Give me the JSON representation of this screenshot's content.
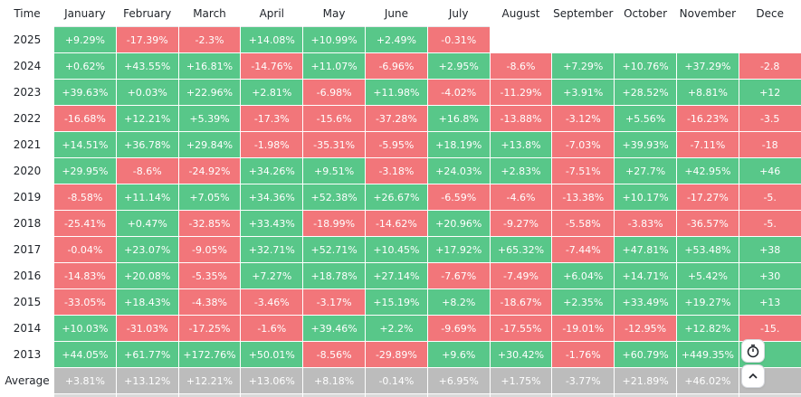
{
  "chart_data": {
    "type": "heatmap",
    "corner_label": "Time",
    "columns": [
      "January",
      "February",
      "March",
      "April",
      "May",
      "June",
      "July",
      "August",
      "September",
      "October",
      "November",
      "Dece"
    ],
    "rows": [
      {
        "label": "2025",
        "values": [
          "+9.29%",
          "-17.39%",
          "-2.3%",
          "+14.08%",
          "+10.99%",
          "+2.49%",
          "-0.31%",
          null,
          null,
          null,
          null,
          null
        ]
      },
      {
        "label": "2024",
        "values": [
          "+0.62%",
          "+43.55%",
          "+16.81%",
          "-14.76%",
          "+11.07%",
          "-6.96%",
          "+2.95%",
          "-8.6%",
          "+7.29%",
          "+10.76%",
          "+37.29%",
          "-2.8"
        ]
      },
      {
        "label": "2023",
        "values": [
          "+39.63%",
          "+0.03%",
          "+22.96%",
          "+2.81%",
          "-6.98%",
          "+11.98%",
          "-4.02%",
          "-11.29%",
          "+3.91%",
          "+28.52%",
          "+8.81%",
          "+12"
        ]
      },
      {
        "label": "2022",
        "values": [
          "-16.68%",
          "+12.21%",
          "+5.39%",
          "-17.3%",
          "-15.6%",
          "-37.28%",
          "+16.8%",
          "-13.88%",
          "-3.12%",
          "+5.56%",
          "-16.23%",
          "-3.5"
        ]
      },
      {
        "label": "2021",
        "values": [
          "+14.51%",
          "+36.78%",
          "+29.84%",
          "-1.98%",
          "-35.31%",
          "-5.95%",
          "+18.19%",
          "+13.8%",
          "-7.03%",
          "+39.93%",
          "-7.11%",
          "-18"
        ]
      },
      {
        "label": "2020",
        "values": [
          "+29.95%",
          "-8.6%",
          "-24.92%",
          "+34.26%",
          "+9.51%",
          "-3.18%",
          "+24.03%",
          "+2.83%",
          "-7.51%",
          "+27.7%",
          "+42.95%",
          "+46"
        ]
      },
      {
        "label": "2019",
        "values": [
          "-8.58%",
          "+11.14%",
          "+7.05%",
          "+34.36%",
          "+52.38%",
          "+26.67%",
          "-6.59%",
          "-4.6%",
          "-13.38%",
          "+10.17%",
          "-17.27%",
          "-5."
        ]
      },
      {
        "label": "2018",
        "values": [
          "-25.41%",
          "+0.47%",
          "-32.85%",
          "+33.43%",
          "-18.99%",
          "-14.62%",
          "+20.96%",
          "-9.27%",
          "-5.58%",
          "-3.83%",
          "-36.57%",
          "-5."
        ]
      },
      {
        "label": "2017",
        "values": [
          "-0.04%",
          "+23.07%",
          "-9.05%",
          "+32.71%",
          "+52.71%",
          "+10.45%",
          "+17.92%",
          "+65.32%",
          "-7.44%",
          "+47.81%",
          "+53.48%",
          "+38"
        ]
      },
      {
        "label": "2016",
        "values": [
          "-14.83%",
          "+20.08%",
          "-5.35%",
          "+7.27%",
          "+18.78%",
          "+27.14%",
          "-7.67%",
          "-7.49%",
          "+6.04%",
          "+14.71%",
          "+5.42%",
          "+30"
        ]
      },
      {
        "label": "2015",
        "values": [
          "-33.05%",
          "+18.43%",
          "-4.38%",
          "-3.46%",
          "-3.17%",
          "+15.19%",
          "+8.2%",
          "-18.67%",
          "+2.35%",
          "+33.49%",
          "+19.27%",
          "+13"
        ]
      },
      {
        "label": "2014",
        "values": [
          "+10.03%",
          "-31.03%",
          "-17.25%",
          "-1.6%",
          "+39.46%",
          "+2.2%",
          "-9.69%",
          "-17.55%",
          "-19.01%",
          "-12.95%",
          "+12.82%",
          "-15."
        ]
      },
      {
        "label": "2013",
        "values": [
          "+44.05%",
          "+61.77%",
          "+172.76%",
          "+50.01%",
          "-8.56%",
          "-29.89%",
          "+9.6%",
          "+30.42%",
          "-1.76%",
          "+60.79%",
          "+449.35%",
          ""
        ]
      },
      {
        "label": "Average",
        "values": [
          "+3.81%",
          "+13.12%",
          "+12.21%",
          "+13.06%",
          "+8.18%",
          "-0.14%",
          "+6.95%",
          "+1.75%",
          "-3.77%",
          "+21.89%",
          "+46.02%",
          ""
        ]
      }
    ],
    "colors": {
      "positive": "#58c789",
      "negative": "#f2767a",
      "average": "#bcbcbc",
      "header_bg": "#ffffff",
      "text_on_cell": "#ffffff",
      "text_label": "#1f2329"
    }
  },
  "controls": {
    "settings_icon": "stopwatch-icon",
    "scroll_up_icon": "chevron-up-icon"
  }
}
